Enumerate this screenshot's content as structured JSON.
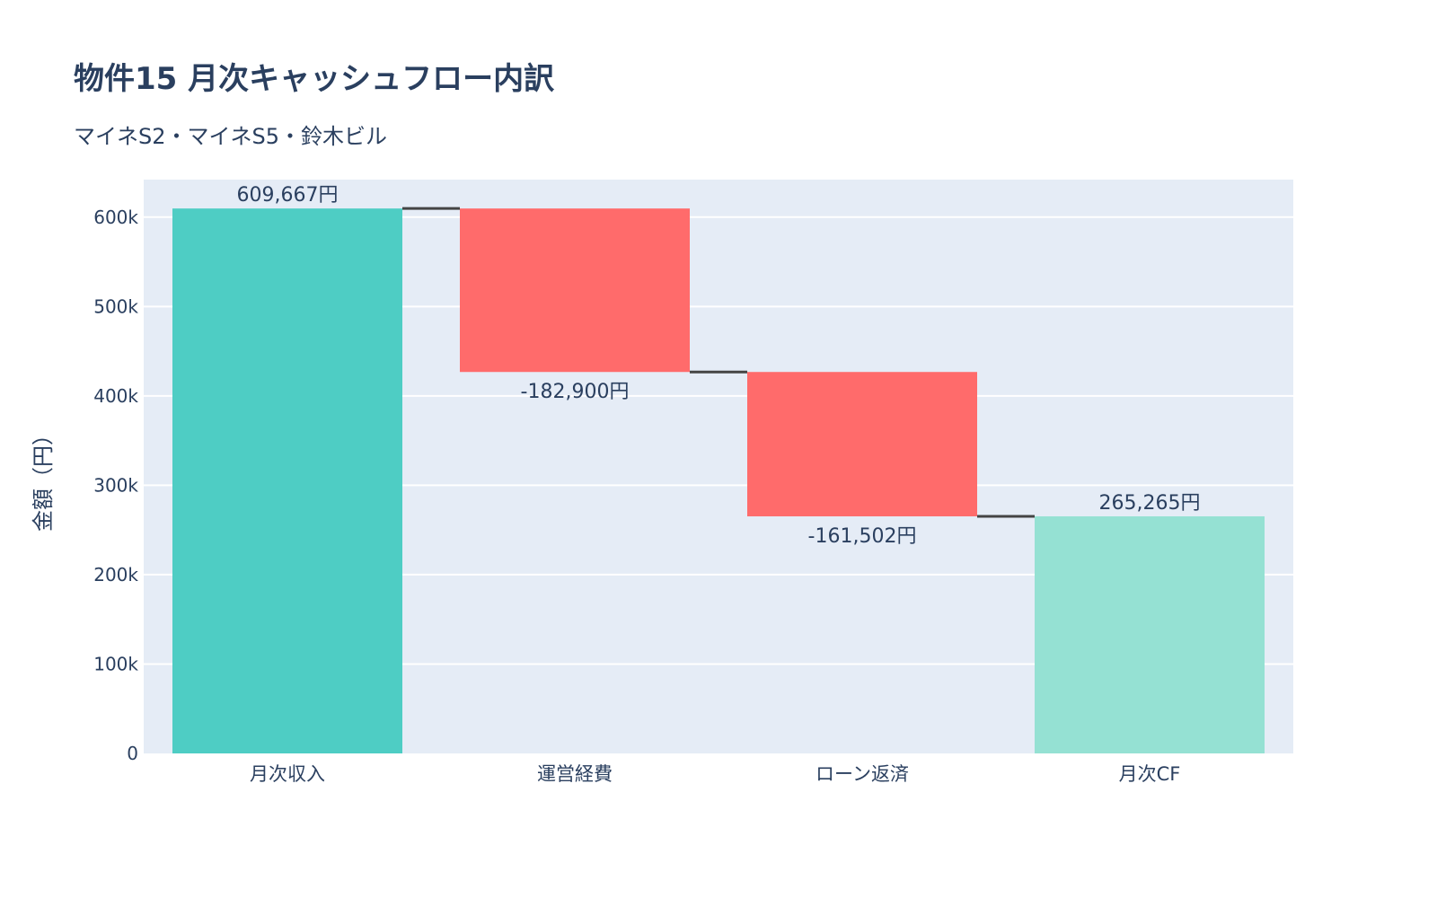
{
  "chart_data": {
    "type": "waterfall",
    "title": "物件15 月次キャッシュフロー内訳",
    "subtitle": "マイネS2・マイネS5・鈴木ビル",
    "xlabel": "",
    "ylabel": "金額（円）",
    "ylim": [
      0,
      642000
    ],
    "yticks": [
      0,
      100000,
      200000,
      300000,
      400000,
      500000,
      600000
    ],
    "ytick_labels": [
      "0",
      "100k",
      "200k",
      "300k",
      "400k",
      "500k",
      "600k"
    ],
    "grid": true,
    "categories": [
      "月次収入",
      "運営経費",
      "ローン返済",
      "月次CF"
    ],
    "measures": [
      "absolute",
      "relative",
      "relative",
      "total"
    ],
    "values": [
      609667,
      -182900,
      -161502,
      265265
    ],
    "labels": [
      "609,667円",
      "-182,900円",
      "-161,502円",
      "265,265円"
    ],
    "colors": {
      "increasing": "#4ecdc4",
      "decreasing": "#ff6b6b",
      "total": "#95e1d3",
      "connector": "#444444",
      "plot_bg": "#e5ecf6",
      "text": "#2a3f5f"
    }
  }
}
